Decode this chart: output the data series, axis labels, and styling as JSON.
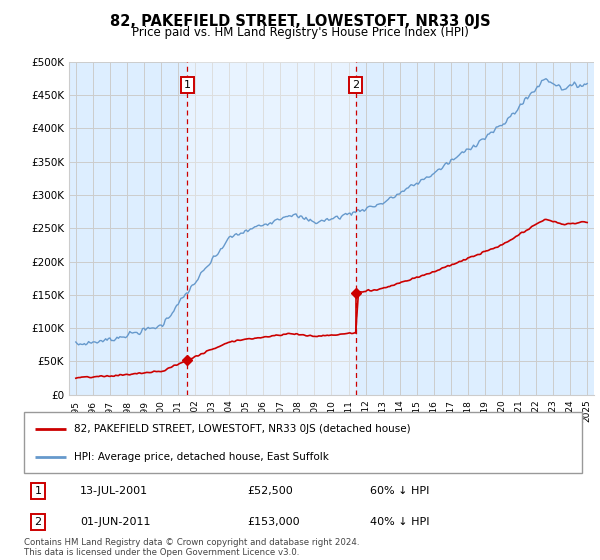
{
  "title": "82, PAKEFIELD STREET, LOWESTOFT, NR33 0JS",
  "subtitle": "Price paid vs. HM Land Registry's House Price Index (HPI)",
  "red_label": "82, PAKEFIELD STREET, LOWESTOFT, NR33 0JS (detached house)",
  "blue_label": "HPI: Average price, detached house, East Suffolk",
  "annotation1_date": "13-JUL-2001",
  "annotation1_price": "£52,500",
  "annotation1_hpi": "60% ↓ HPI",
  "annotation2_date": "01-JUN-2011",
  "annotation2_price": "£153,000",
  "annotation2_hpi": "40% ↓ HPI",
  "footnote": "Contains HM Land Registry data © Crown copyright and database right 2024.\nThis data is licensed under the Open Government Licence v3.0.",
  "red_color": "#cc0000",
  "blue_color": "#6699cc",
  "vline_color": "#cc0000",
  "grid_color": "#cccccc",
  "background_color": "#ddeeff",
  "shade_color": "#cce0f0",
  "plot_bg": "#ffffff",
  "ylim": [
    0,
    500000
  ],
  "yticks": [
    0,
    50000,
    100000,
    150000,
    200000,
    250000,
    300000,
    350000,
    400000,
    450000,
    500000
  ],
  "sale1_year": 2001.54,
  "sale2_year": 2011.42,
  "sale1_price": 52500,
  "sale2_price": 153000
}
